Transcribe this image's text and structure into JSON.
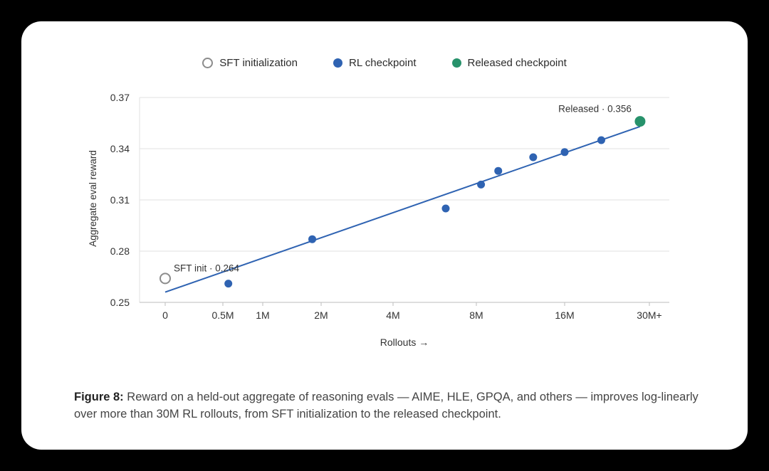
{
  "legend": {
    "sft": "SFT initialization",
    "rl": "RL checkpoint",
    "released": "Released checkpoint"
  },
  "colors": {
    "rl": "#2f63b2",
    "released": "#27926b",
    "sft": "#8c8c8c",
    "grid": "#e2e2e2",
    "fit_line": "#2f63b2"
  },
  "chart_data": {
    "type": "scatter",
    "title": "",
    "xlabel": "Rollouts →",
    "ylabel": "Aggregate eval reward",
    "x_scale": "log",
    "x_ticks": [
      {
        "value": 0,
        "label": "0"
      },
      {
        "value": 0.5,
        "label": "0.5M"
      },
      {
        "value": 1,
        "label": "1M"
      },
      {
        "value": 2,
        "label": "2M"
      },
      {
        "value": 4,
        "label": "4M"
      },
      {
        "value": 8,
        "label": "8M"
      },
      {
        "value": 16,
        "label": "16M"
      },
      {
        "value": 30,
        "label": "30M+"
      }
    ],
    "y_ticks": [
      0.25,
      0.28,
      0.31,
      0.34,
      0.37
    ],
    "ylim": [
      0.25,
      0.37
    ],
    "grid": true,
    "legend_position": "top",
    "series": [
      {
        "name": "SFT initialization",
        "points": [
          {
            "x": 0,
            "y": 0.264
          }
        ]
      },
      {
        "name": "RL checkpoint",
        "points": [
          {
            "x": 0.55,
            "y": 0.261
          },
          {
            "x": 1.8,
            "y": 0.287
          },
          {
            "x": 6.2,
            "y": 0.305
          },
          {
            "x": 8.3,
            "y": 0.319
          },
          {
            "x": 9.5,
            "y": 0.327
          },
          {
            "x": 12.5,
            "y": 0.335
          },
          {
            "x": 16,
            "y": 0.338
          },
          {
            "x": 21,
            "y": 0.345
          }
        ]
      },
      {
        "name": "Released checkpoint",
        "points": [
          {
            "x": 28,
            "y": 0.356
          }
        ]
      }
    ],
    "fit_line": {
      "from": {
        "x": 0,
        "y": 0.256
      },
      "to": {
        "x": 28,
        "y": 0.353
      }
    },
    "annotations": [
      {
        "text": "SFT init · 0.264",
        "x": 0,
        "y": 0.264
      },
      {
        "text": "Released · 0.356",
        "x": 28,
        "y": 0.356
      }
    ]
  },
  "caption": {
    "label": "Figure 8:",
    "text": " Reward on a held-out aggregate of reasoning evals — AIME, HLE, GPQA, and others — improves log-linearly over more than 30M RL rollouts, from SFT initialization to the released checkpoint."
  }
}
